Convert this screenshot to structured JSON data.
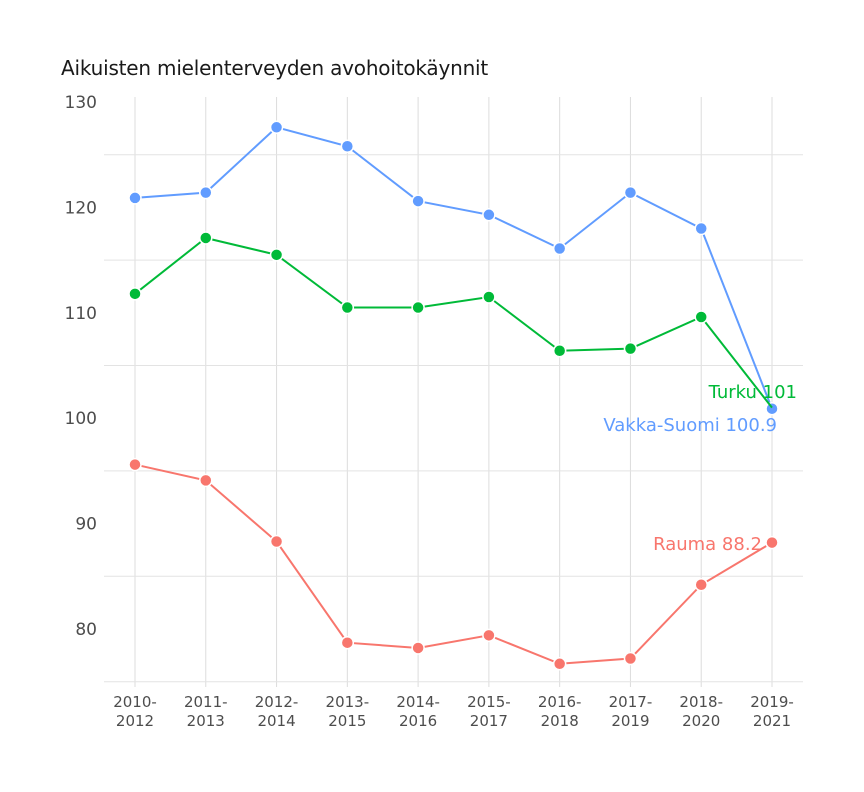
{
  "chart_data": {
    "type": "line",
    "title": "Aikuisten mielenterveyden avohoitokäynnit",
    "xlabel": "",
    "ylabel": "",
    "categories": [
      "2010-\n2012",
      "2011-\n2013",
      "2012-\n2014",
      "2013-\n2015",
      "2014-\n2016",
      "2015-\n2017",
      "2016-\n2018",
      "2017-\n2019",
      "2018-\n2020",
      "2019-\n2021"
    ],
    "y_ticks": [
      80,
      90,
      100,
      110,
      120,
      130
    ],
    "ylim": [
      75,
      130
    ],
    "grid": true,
    "legend": "none (direct end labels)",
    "series": [
      {
        "name": "Vakka-Suomi",
        "color": "#619CFF",
        "values": [
          120.9,
          121.4,
          127.6,
          125.8,
          120.6,
          119.3,
          116.1,
          121.4,
          118.0,
          100.9
        ],
        "end_label": "Vakka-Suomi 100.9"
      },
      {
        "name": "Turku",
        "color": "#00BA38",
        "values": [
          111.8,
          117.1,
          115.5,
          110.5,
          110.5,
          111.5,
          106.4,
          106.6,
          109.6,
          101.0
        ],
        "end_label": "Turku 101"
      },
      {
        "name": "Rauma",
        "color": "#F8766D",
        "values": [
          95.6,
          94.1,
          88.3,
          78.7,
          78.2,
          79.4,
          76.7,
          77.2,
          84.2,
          88.2
        ],
        "end_label": "Rauma 88.2"
      }
    ]
  }
}
